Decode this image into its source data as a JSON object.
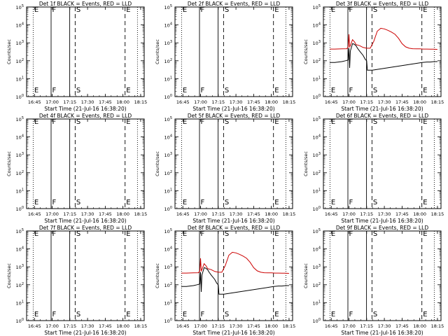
{
  "chart_data": {
    "type": "line",
    "panels": [
      {
        "title": "Det 1f BLACK = Events, RED = LLD",
        "ylabel": "Counts/sec",
        "xlabel": "Start Time (21-Jul-16 16:38:20)",
        "has_data": false
      },
      {
        "title": "Det 2f BLACK = Events, RED = LLD",
        "ylabel": "Counts/sec",
        "xlabel": "Start Time (21-Jul-16 16:38:20)",
        "has_data": false
      },
      {
        "title": "Det 3f BLACK = Events, RED = LLD",
        "ylabel": "Counts/sec",
        "xlabel": "Start Time (21-Jul-16 16:38:20)",
        "has_data": true,
        "series": [
          {
            "color": "#cc0000",
            "x": [
              16.73,
              16.8,
              16.9,
              16.97,
              16.99,
              17.0,
              17.01,
              17.02,
              17.05,
              17.08,
              17.1,
              17.15,
              17.2,
              17.25,
              17.3,
              17.35,
              17.4,
              17.45,
              17.5,
              17.55,
              17.6,
              17.65,
              17.7,
              17.75,
              17.8,
              17.85,
              17.9,
              17.95,
              18.0,
              18.05,
              18.1,
              18.15,
              18.2,
              18.25
            ],
            "y": [
              450,
              450,
              460,
              470,
              600,
              3000,
              600,
              700,
              1500,
              1100,
              800,
              700,
              550,
              500,
              500,
              1200,
              4500,
              6500,
              6000,
              5000,
              4000,
              3000,
              1800,
              900,
              600,
              500,
              470,
              460,
              460,
              450,
              450,
              440,
              440,
              430
            ]
          },
          {
            "color": "#000000",
            "x": [
              16.73,
              16.8,
              16.85,
              16.9,
              16.95,
              16.99,
              17.0,
              17.005,
              17.01,
              17.02,
              17.05,
              17.07,
              17.08,
              17.1,
              17.12,
              17.15,
              17.2,
              17.23,
              17.25,
              17.26,
              17.3,
              17.33,
              18.035,
              18.1,
              18.15,
              18.2,
              18.25
            ],
            "y": [
              80,
              80,
              85,
              90,
              100,
              110,
              500,
              150,
              40,
              350,
              900,
              850,
              800,
              700,
              500,
              350,
              200,
              120,
              100,
              30,
              30,
              30,
              80,
              85,
              85,
              90,
              90
            ]
          }
        ]
      },
      {
        "title": "Det 4f BLACK = Events, RED = LLD",
        "ylabel": "Counts/sec",
        "xlabel": "Start Time (21-Jul-16 16:38:20)",
        "has_data": false
      },
      {
        "title": "Det 5f BLACK = Events, RED = LLD",
        "ylabel": "Counts/sec",
        "xlabel": "Start Time (21-Jul-16 16:38:20)",
        "has_data": false
      },
      {
        "title": "Det 6f BLACK = Events, RED = LLD",
        "ylabel": "Counts/sec",
        "xlabel": "Start Time (21-Jul-16 16:38:20)",
        "has_data": false
      },
      {
        "title": "Det 7f BLACK = Events, RED = LLD",
        "ylabel": "Counts/sec",
        "xlabel": "Start Time (21-Jul-16 16:38:20)",
        "has_data": false
      },
      {
        "title": "Det 8f BLACK = Events, RED = LLD",
        "ylabel": "Counts/sec",
        "xlabel": "Start Time (21-Jul-16 16:38:20)",
        "has_data": true,
        "series": [
          {
            "color": "#cc0000",
            "x": [
              16.73,
              16.8,
              16.9,
              16.97,
              16.99,
              17.0,
              17.01,
              17.02,
              17.05,
              17.08,
              17.1,
              17.15,
              17.2,
              17.25,
              17.3,
              17.35,
              17.4,
              17.45,
              17.5,
              17.55,
              17.6,
              17.65,
              17.7,
              17.75,
              17.8,
              17.85,
              17.9,
              17.95,
              18.0,
              18.05,
              18.1,
              18.15,
              18.2,
              18.25
            ],
            "y": [
              450,
              450,
              460,
              470,
              600,
              3000,
              600,
              700,
              1500,
              1100,
              800,
              700,
              550,
              500,
              500,
              1200,
              4500,
              6500,
              6000,
              5000,
              4000,
              3000,
              1800,
              900,
              600,
              500,
              470,
              460,
              460,
              450,
              450,
              440,
              440,
              430
            ]
          },
          {
            "color": "#000000",
            "x": [
              16.73,
              16.8,
              16.85,
              16.9,
              16.95,
              16.99,
              17.0,
              17.005,
              17.01,
              17.02,
              17.05,
              17.07,
              17.08,
              17.1,
              17.12,
              17.15,
              17.2,
              17.23,
              17.25,
              17.26,
              17.3,
              17.33,
              18.035,
              18.1,
              18.15,
              18.2,
              18.25
            ],
            "y": [
              80,
              80,
              85,
              90,
              100,
              110,
              500,
              150,
              40,
              350,
              900,
              850,
              800,
              700,
              500,
              350,
              200,
              120,
              100,
              30,
              30,
              30,
              80,
              85,
              85,
              90,
              90
            ]
          }
        ]
      },
      {
        "title": "Det 9f BLACK = Events, RED = LLD",
        "ylabel": "Counts/sec",
        "xlabel": "Start Time (21-Jul-16 16:38:20)",
        "has_data": false
      }
    ],
    "x_axis": {
      "range_hours": [
        16.639,
        18.3
      ],
      "ticks": [
        16.75,
        17.0,
        17.25,
        17.5,
        17.75,
        18.0,
        18.25
      ],
      "tick_labels": [
        "16:45",
        "17:00",
        "17:15",
        "17:30",
        "17:45",
        "18:00",
        "18:15"
      ]
    },
    "y_axis": {
      "scale": "log",
      "ylim": [
        1,
        100000
      ],
      "tick_mantissa": "10",
      "tick_exponents": [
        "0",
        "1",
        "2",
        "3",
        "4",
        "5"
      ]
    },
    "markers": [
      {
        "label": "E",
        "x": 16.732,
        "style": "dotted",
        "show_label": true
      },
      {
        "label": "F",
        "x": 16.985,
        "style": "solid",
        "show_label": true
      },
      {
        "label": "",
        "x": 17.248,
        "style": "solid",
        "show_label": false
      },
      {
        "label": "S",
        "x": 17.325,
        "style": "dashed",
        "show_label": true
      },
      {
        "label": "E",
        "x": 18.03,
        "style": "dashed",
        "show_label": true
      },
      {
        "label": "",
        "x": 18.205,
        "style": "dotted",
        "show_label": false
      }
    ]
  }
}
